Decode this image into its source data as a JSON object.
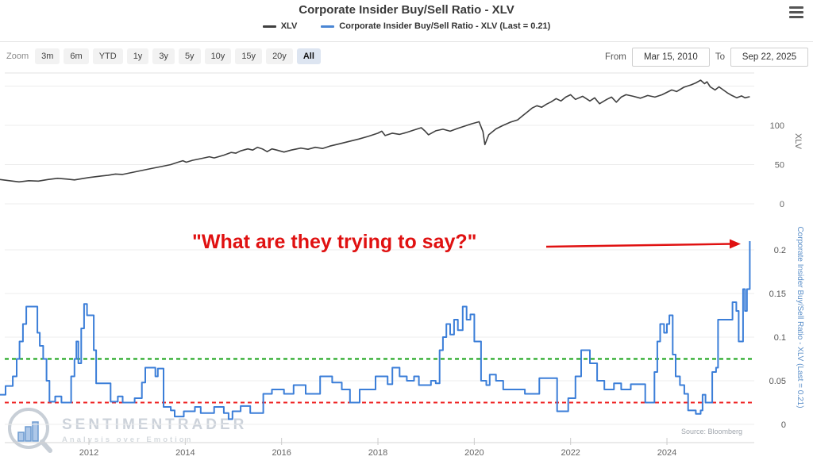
{
  "header": {
    "title": "Corporate Insider Buy/Sell Ratio - XLV"
  },
  "legend": {
    "items": [
      {
        "label": "XLV",
        "color": "#404040"
      },
      {
        "label": "Corporate Insider Buy/Sell Ratio - XLV (Last = 0.21)",
        "color": "#4a86d4"
      }
    ]
  },
  "toolbar": {
    "zoom_label": "Zoom",
    "buttons": [
      "3m",
      "6m",
      "YTD",
      "1y",
      "3y",
      "5y",
      "10y",
      "15y",
      "20y",
      "All"
    ],
    "active_button": "All",
    "from_label": "From",
    "from_value": "Mar 15, 2010",
    "to_label": "To",
    "to_value": "Sep 22, 2025"
  },
  "annotation": {
    "text": "\"What are they trying to say?\"",
    "color": "#e01111"
  },
  "watermark": {
    "brand": "SENTIMENTRADER",
    "tagline": "Analysis over Emotion"
  },
  "source_note": "Source: Bloomberg",
  "x_axis": {
    "ticks": [
      2012,
      2014,
      2016,
      2018,
      2020,
      2022,
      2024
    ],
    "range_years": [
      2010.15,
      2025.75
    ]
  },
  "chart_data": [
    {
      "type": "line",
      "title": "XLV price panel",
      "ylabel": "XLV",
      "yticks": [
        0,
        50,
        100
      ],
      "ygrid": [
        0,
        50,
        100,
        150
      ],
      "ylim": [
        0,
        165
      ],
      "series": [
        {
          "name": "XLV",
          "color": "#3f3f3f",
          "points": [
            [
              2010.15,
              31
            ],
            [
              2010.35,
              29.5
            ],
            [
              2010.55,
              28
            ],
            [
              2010.75,
              29.5
            ],
            [
              2010.95,
              29
            ],
            [
              2011.15,
              31
            ],
            [
              2011.35,
              32.5
            ],
            [
              2011.55,
              31.5
            ],
            [
              2011.7,
              30.5
            ],
            [
              2011.85,
              32
            ],
            [
              2012.0,
              33.5
            ],
            [
              2012.2,
              35
            ],
            [
              2012.4,
              36.5
            ],
            [
              2012.55,
              38
            ],
            [
              2012.7,
              37.5
            ],
            [
              2012.9,
              40
            ],
            [
              2013.1,
              42.5
            ],
            [
              2013.3,
              45
            ],
            [
              2013.5,
              47.5
            ],
            [
              2013.7,
              50
            ],
            [
              2013.85,
              53
            ],
            [
              2013.95,
              55
            ],
            [
              2014.02,
              53
            ],
            [
              2014.15,
              55.5
            ],
            [
              2014.35,
              58
            ],
            [
              2014.5,
              60
            ],
            [
              2014.6,
              58.5
            ],
            [
              2014.8,
              62
            ],
            [
              2014.95,
              65.5
            ],
            [
              2015.05,
              64.5
            ],
            [
              2015.15,
              67.5
            ],
            [
              2015.3,
              70
            ],
            [
              2015.4,
              68.5
            ],
            [
              2015.5,
              72
            ],
            [
              2015.6,
              70
            ],
            [
              2015.7,
              66.5
            ],
            [
              2015.8,
              70
            ],
            [
              2015.9,
              68.5
            ],
            [
              2016.05,
              66
            ],
            [
              2016.2,
              68.5
            ],
            [
              2016.4,
              71
            ],
            [
              2016.55,
              69.5
            ],
            [
              2016.7,
              72
            ],
            [
              2016.85,
              70.5
            ],
            [
              2017.0,
              73.5
            ],
            [
              2017.2,
              76.5
            ],
            [
              2017.4,
              79.5
            ],
            [
              2017.6,
              82.5
            ],
            [
              2017.8,
              86
            ],
            [
              2018.0,
              90
            ],
            [
              2018.08,
              92.5
            ],
            [
              2018.15,
              87
            ],
            [
              2018.3,
              90
            ],
            [
              2018.45,
              88.5
            ],
            [
              2018.6,
              91
            ],
            [
              2018.75,
              94
            ],
            [
              2018.9,
              97
            ],
            [
              2018.98,
              92.5
            ],
            [
              2019.05,
              88
            ],
            [
              2019.2,
              93
            ],
            [
              2019.35,
              95
            ],
            [
              2019.5,
              92.5
            ],
            [
              2019.65,
              96
            ],
            [
              2019.8,
              99
            ],
            [
              2019.95,
              102
            ],
            [
              2020.1,
              104.5
            ],
            [
              2020.18,
              92
            ],
            [
              2020.22,
              75.5
            ],
            [
              2020.3,
              88
            ],
            [
              2020.45,
              95.5
            ],
            [
              2020.6,
              100
            ],
            [
              2020.75,
              104
            ],
            [
              2020.9,
              107
            ],
            [
              2021.0,
              112
            ],
            [
              2021.1,
              117
            ],
            [
              2021.2,
              122
            ],
            [
              2021.3,
              125
            ],
            [
              2021.4,
              123
            ],
            [
              2021.5,
              127
            ],
            [
              2021.6,
              130
            ],
            [
              2021.7,
              134
            ],
            [
              2021.8,
              131
            ],
            [
              2021.9,
              136
            ],
            [
              2022.0,
              139
            ],
            [
              2022.1,
              133
            ],
            [
              2022.25,
              137
            ],
            [
              2022.4,
              131
            ],
            [
              2022.5,
              135
            ],
            [
              2022.6,
              127.5
            ],
            [
              2022.75,
              133
            ],
            [
              2022.85,
              136
            ],
            [
              2022.95,
              129.5
            ],
            [
              2023.05,
              136
            ],
            [
              2023.15,
              139
            ],
            [
              2023.3,
              137
            ],
            [
              2023.45,
              134.5
            ],
            [
              2023.6,
              138
            ],
            [
              2023.75,
              136
            ],
            [
              2023.9,
              139
            ],
            [
              2024.0,
              142
            ],
            [
              2024.1,
              145
            ],
            [
              2024.2,
              143
            ],
            [
              2024.35,
              148.5
            ],
            [
              2024.5,
              151.5
            ],
            [
              2024.6,
              154
            ],
            [
              2024.7,
              157.5
            ],
            [
              2024.78,
              153
            ],
            [
              2024.83,
              155.5
            ],
            [
              2024.9,
              149
            ],
            [
              2025.0,
              145
            ],
            [
              2025.08,
              149
            ],
            [
              2025.15,
              146
            ],
            [
              2025.25,
              141.5
            ],
            [
              2025.35,
              138
            ],
            [
              2025.45,
              135
            ],
            [
              2025.55,
              137.5
            ],
            [
              2025.62,
              135
            ],
            [
              2025.72,
              136.5
            ]
          ]
        }
      ]
    },
    {
      "type": "line",
      "step": true,
      "title": "Corporate Insider Buy/Sell Ratio panel",
      "ylabel": "Corporate Insider Buy/Sell Ratio - XLV (Last = 0.21)",
      "ylabel_color": "#5b8fc9",
      "yticks": [
        0,
        0.05,
        0.1,
        0.15,
        0.2
      ],
      "ylim": [
        -0.02,
        0.22
      ],
      "last_value": 0.21,
      "hlines": [
        {
          "value": 0.075,
          "color": "#10a010",
          "style": "dashed"
        },
        {
          "value": 0.025,
          "color": "#ee2222",
          "style": "dashed"
        }
      ],
      "series": [
        {
          "name": "Corporate Insider Buy/Sell Ratio - XLV",
          "color": "#3b7ed8",
          "points": [
            [
              2010.15,
              0.034
            ],
            [
              2010.27,
              0.044
            ],
            [
              2010.42,
              0.055
            ],
            [
              2010.5,
              0.075
            ],
            [
              2010.56,
              0.095
            ],
            [
              2010.63,
              0.115
            ],
            [
              2010.7,
              0.135
            ],
            [
              2010.93,
              0.105
            ],
            [
              2010.98,
              0.09
            ],
            [
              2011.05,
              0.075
            ],
            [
              2011.12,
              0.05
            ],
            [
              2011.18,
              0.026
            ],
            [
              2011.3,
              0.032
            ],
            [
              2011.43,
              0.025
            ],
            [
              2011.63,
              0.055
            ],
            [
              2011.7,
              0.075
            ],
            [
              2011.74,
              0.095
            ],
            [
              2011.78,
              0.07
            ],
            [
              2011.84,
              0.11
            ],
            [
              2011.9,
              0.138
            ],
            [
              2011.96,
              0.125
            ],
            [
              2012.1,
              0.085
            ],
            [
              2012.15,
              0.047
            ],
            [
              2012.45,
              0.026
            ],
            [
              2012.6,
              0.032
            ],
            [
              2012.7,
              0.025
            ],
            [
              2012.95,
              0.03
            ],
            [
              2013.1,
              0.048
            ],
            [
              2013.17,
              0.065
            ],
            [
              2013.38,
              0.055
            ],
            [
              2013.43,
              0.064
            ],
            [
              2013.55,
              0.02
            ],
            [
              2013.7,
              0.016
            ],
            [
              2013.78,
              0.009
            ],
            [
              2013.97,
              0.015
            ],
            [
              2014.2,
              0.02
            ],
            [
              2014.32,
              0.013
            ],
            [
              2014.6,
              0.02
            ],
            [
              2014.8,
              0.013
            ],
            [
              2014.9,
              0.006
            ],
            [
              2014.98,
              0.015
            ],
            [
              2015.15,
              0.021
            ],
            [
              2015.35,
              0.013
            ],
            [
              2015.62,
              0.035
            ],
            [
              2015.8,
              0.04
            ],
            [
              2016.05,
              0.035
            ],
            [
              2016.25,
              0.045
            ],
            [
              2016.5,
              0.035
            ],
            [
              2016.8,
              0.055
            ],
            [
              2017.05,
              0.048
            ],
            [
              2017.25,
              0.04
            ],
            [
              2017.42,
              0.025
            ],
            [
              2017.62,
              0.04
            ],
            [
              2017.95,
              0.055
            ],
            [
              2018.2,
              0.046
            ],
            [
              2018.3,
              0.065
            ],
            [
              2018.45,
              0.055
            ],
            [
              2018.6,
              0.05
            ],
            [
              2018.75,
              0.055
            ],
            [
              2018.85,
              0.045
            ],
            [
              2019.1,
              0.05
            ],
            [
              2019.2,
              0.047
            ],
            [
              2019.28,
              0.085
            ],
            [
              2019.35,
              0.1
            ],
            [
              2019.42,
              0.115
            ],
            [
              2019.5,
              0.103
            ],
            [
              2019.58,
              0.12
            ],
            [
              2019.66,
              0.108
            ],
            [
              2019.76,
              0.135
            ],
            [
              2019.84,
              0.12
            ],
            [
              2019.92,
              0.126
            ],
            [
              2020.0,
              0.095
            ],
            [
              2020.14,
              0.05
            ],
            [
              2020.25,
              0.045
            ],
            [
              2020.32,
              0.057
            ],
            [
              2020.45,
              0.05
            ],
            [
              2020.6,
              0.04
            ],
            [
              2021.05,
              0.035
            ],
            [
              2021.35,
              0.053
            ],
            [
              2021.72,
              0.015
            ],
            [
              2021.95,
              0.03
            ],
            [
              2022.1,
              0.055
            ],
            [
              2022.22,
              0.085
            ],
            [
              2022.4,
              0.07
            ],
            [
              2022.55,
              0.05
            ],
            [
              2022.7,
              0.04
            ],
            [
              2022.9,
              0.047
            ],
            [
              2023.05,
              0.04
            ],
            [
              2023.25,
              0.046
            ],
            [
              2023.55,
              0.025
            ],
            [
              2023.74,
              0.06
            ],
            [
              2023.8,
              0.095
            ],
            [
              2023.86,
              0.115
            ],
            [
              2023.94,
              0.105
            ],
            [
              2024.0,
              0.115
            ],
            [
              2024.05,
              0.125
            ],
            [
              2024.12,
              0.08
            ],
            [
              2024.18,
              0.055
            ],
            [
              2024.27,
              0.045
            ],
            [
              2024.36,
              0.035
            ],
            [
              2024.44,
              0.016
            ],
            [
              2024.6,
              0.012
            ],
            [
              2024.7,
              0.016
            ],
            [
              2024.74,
              0.034
            ],
            [
              2024.8,
              0.025
            ],
            [
              2024.94,
              0.06
            ],
            [
              2025.02,
              0.065
            ],
            [
              2025.06,
              0.12
            ],
            [
              2025.36,
              0.14
            ],
            [
              2025.44,
              0.13
            ],
            [
              2025.49,
              0.095
            ],
            [
              2025.58,
              0.155
            ],
            [
              2025.62,
              0.13
            ],
            [
              2025.66,
              0.155
            ],
            [
              2025.72,
              0.21
            ]
          ]
        }
      ]
    }
  ]
}
